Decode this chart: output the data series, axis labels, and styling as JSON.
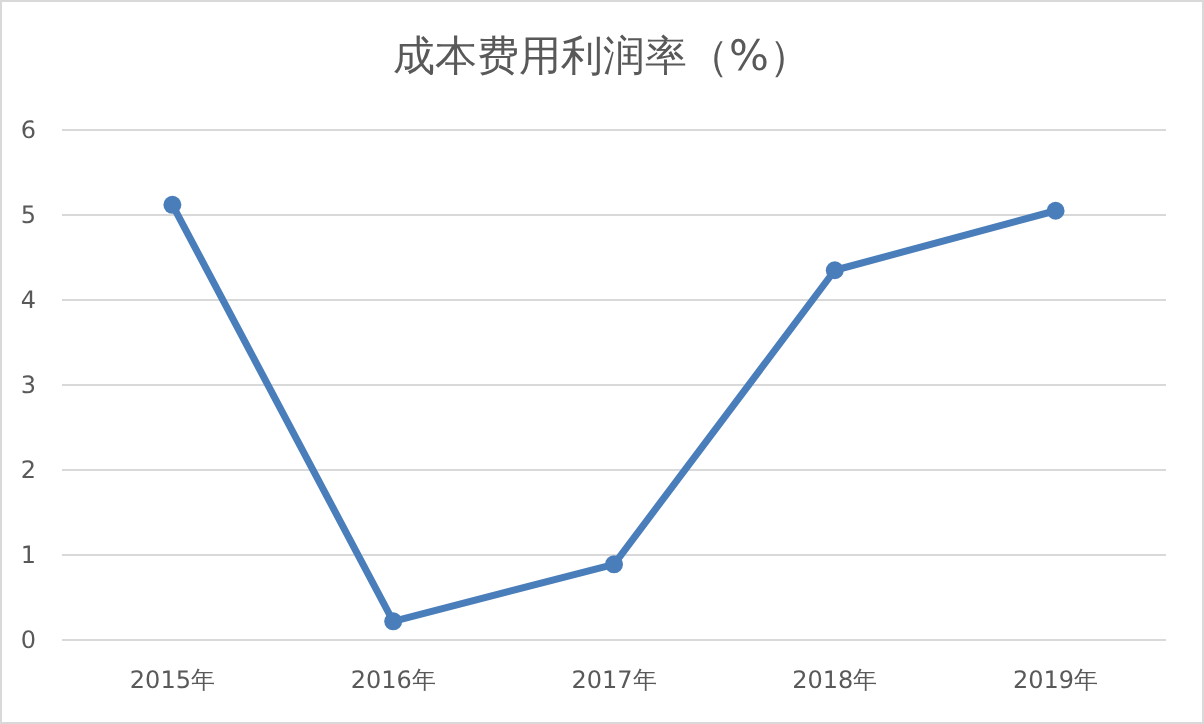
{
  "chart_data": {
    "type": "line",
    "title": "成本费用利润率（%）",
    "categories": [
      "2015年",
      "2016年",
      "2017年",
      "2018年",
      "2019年"
    ],
    "series": [
      {
        "color": "#4a7ebb",
        "values": [
          5.12,
          0.22,
          0.89,
          4.35,
          5.05
        ]
      }
    ],
    "ylim": [
      0,
      6
    ],
    "yticks": [
      0,
      1,
      2,
      3,
      4,
      5,
      6
    ],
    "grid": "y",
    "marker": "circle",
    "line_style": "solid"
  }
}
